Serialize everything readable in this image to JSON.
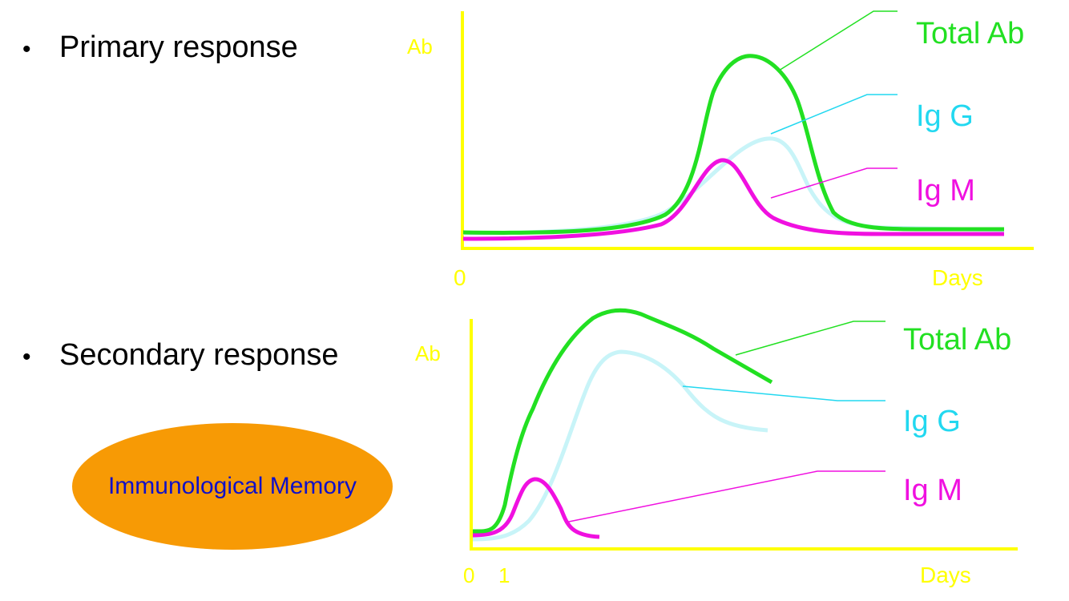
{
  "bullets": {
    "primary": "Primary response",
    "secondary": "Secondary response",
    "symbol": "•"
  },
  "memory_label": "Immunological Memory",
  "colors": {
    "axis": "#ffff00",
    "total_ab": "#22e022",
    "igg": "#c8f4f8",
    "igg_label": "#22d8f0",
    "igm": "#f010e0",
    "memory_fill": "#f79a05",
    "memory_text": "#1010c8"
  },
  "primary_chart": {
    "y_label": "Ab",
    "x_start": "0",
    "x_label": "Days",
    "labels": {
      "total": "Total Ab",
      "igg": "Ig G",
      "igm": "Ig M"
    }
  },
  "secondary_chart": {
    "y_label": "Ab",
    "x_start": "0",
    "x_tick": "1",
    "x_label": "Days",
    "labels": {
      "total": "Total Ab",
      "igg": "Ig G",
      "igm": "Ig M"
    }
  }
}
